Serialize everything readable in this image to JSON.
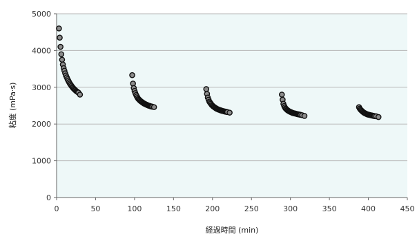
{
  "chart_data": {
    "type": "scatter",
    "title": "",
    "xlabel": "経過時間 (min)",
    "ylabel": "粘度 (mPa·s)",
    "xlim": [
      0,
      450
    ],
    "ylim": [
      0,
      5000
    ],
    "xticks": [
      0,
      50,
      100,
      150,
      200,
      250,
      300,
      350,
      400,
      450
    ],
    "yticks": [
      0,
      1000,
      2000,
      3000,
      4000,
      5000
    ],
    "grid": "horizontal",
    "legend": "none",
    "colors": {
      "plot_bg": "#eef8f8",
      "grid": "#b5b5b5",
      "marker_fill": "#8c8c8c",
      "marker_edge": "#111111"
    },
    "series": [
      {
        "x": [
          3,
          4,
          5,
          6,
          7,
          8,
          9,
          10,
          11,
          12,
          13,
          14,
          15,
          16,
          17,
          18,
          19,
          20,
          21,
          22,
          23,
          24,
          25,
          26,
          27,
          28,
          30
        ],
        "y": [
          4600,
          4350,
          4100,
          3900,
          3750,
          3620,
          3520,
          3450,
          3380,
          3320,
          3270,
          3220,
          3180,
          3140,
          3100,
          3070,
          3040,
          3010,
          2985,
          2960,
          2940,
          2920,
          2900,
          2885,
          2870,
          2855,
          2800
        ]
      },
      {
        "x": [
          97,
          98,
          99,
          100,
          101,
          102,
          103,
          104,
          105,
          106,
          107,
          108,
          109,
          110,
          111,
          112,
          113,
          114,
          115,
          116,
          117,
          118,
          119,
          120,
          121,
          122,
          123,
          125
        ],
        "y": [
          3330,
          3100,
          2980,
          2900,
          2840,
          2790,
          2750,
          2710,
          2680,
          2660,
          2640,
          2620,
          2605,
          2590,
          2575,
          2560,
          2550,
          2540,
          2530,
          2520,
          2510,
          2500,
          2495,
          2490,
          2480,
          2475,
          2470,
          2460
        ]
      },
      {
        "x": [
          192,
          193,
          194,
          195,
          196,
          197,
          198,
          199,
          200,
          201,
          202,
          203,
          204,
          205,
          206,
          207,
          208,
          209,
          210,
          211,
          212,
          213,
          214,
          215,
          216,
          217,
          218,
          219,
          222
        ],
        "y": [
          2950,
          2820,
          2720,
          2660,
          2610,
          2580,
          2550,
          2520,
          2500,
          2480,
          2465,
          2450,
          2435,
          2420,
          2410,
          2400,
          2390,
          2385,
          2375,
          2370,
          2360,
          2355,
          2350,
          2345,
          2340,
          2335,
          2330,
          2325,
          2310
        ]
      },
      {
        "x": [
          289,
          290,
          291,
          292,
          293,
          294,
          295,
          296,
          297,
          298,
          299,
          300,
          301,
          302,
          303,
          304,
          305,
          306,
          307,
          308,
          309,
          310,
          311,
          312,
          313,
          315,
          318
        ],
        "y": [
          2800,
          2660,
          2550,
          2490,
          2450,
          2420,
          2400,
          2380,
          2365,
          2350,
          2340,
          2330,
          2320,
          2310,
          2300,
          2295,
          2290,
          2285,
          2280,
          2275,
          2270,
          2265,
          2260,
          2255,
          2250,
          2240,
          2220
        ]
      },
      {
        "x": [
          388,
          389,
          390,
          391,
          392,
          393,
          394,
          395,
          396,
          397,
          398,
          399,
          400,
          401,
          402,
          403,
          404,
          405,
          406,
          407,
          408,
          410,
          413
        ],
        "y": [
          2460,
          2420,
          2390,
          2370,
          2350,
          2330,
          2315,
          2300,
          2290,
          2280,
          2270,
          2260,
          2255,
          2250,
          2245,
          2240,
          2235,
          2230,
          2225,
          2220,
          2215,
          2210,
          2190
        ]
      }
    ]
  }
}
